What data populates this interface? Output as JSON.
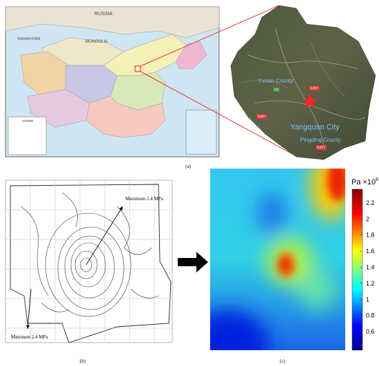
{
  "panel_a": {
    "label": "(a)",
    "map_labels": [
      "RUSSIA",
      "MONGOLIA",
      "KAZAKHSTAN"
    ],
    "legend_title": "LEGEND",
    "site_labels": {
      "county_north": "Yuxian County",
      "city": "Yangquan City",
      "county_south": "Pingding County"
    },
    "road_labels": [
      "G207",
      "G5",
      "G307",
      "G207"
    ]
  },
  "panel_b": {
    "label": "(b)",
    "annotations": [
      "Maximum 2.4 MPa",
      "Minimum 2.4 MPa"
    ]
  },
  "panel_c": {
    "label": "(c)",
    "colorbar": {
      "title": "Pa ×10",
      "title_exponent": "6",
      "range": [
        0.37,
        2.37
      ],
      "ticks": [
        0.6,
        0.8,
        1,
        1.2,
        1.4,
        1.6,
        1.8,
        2,
        2.2
      ]
    }
  }
}
